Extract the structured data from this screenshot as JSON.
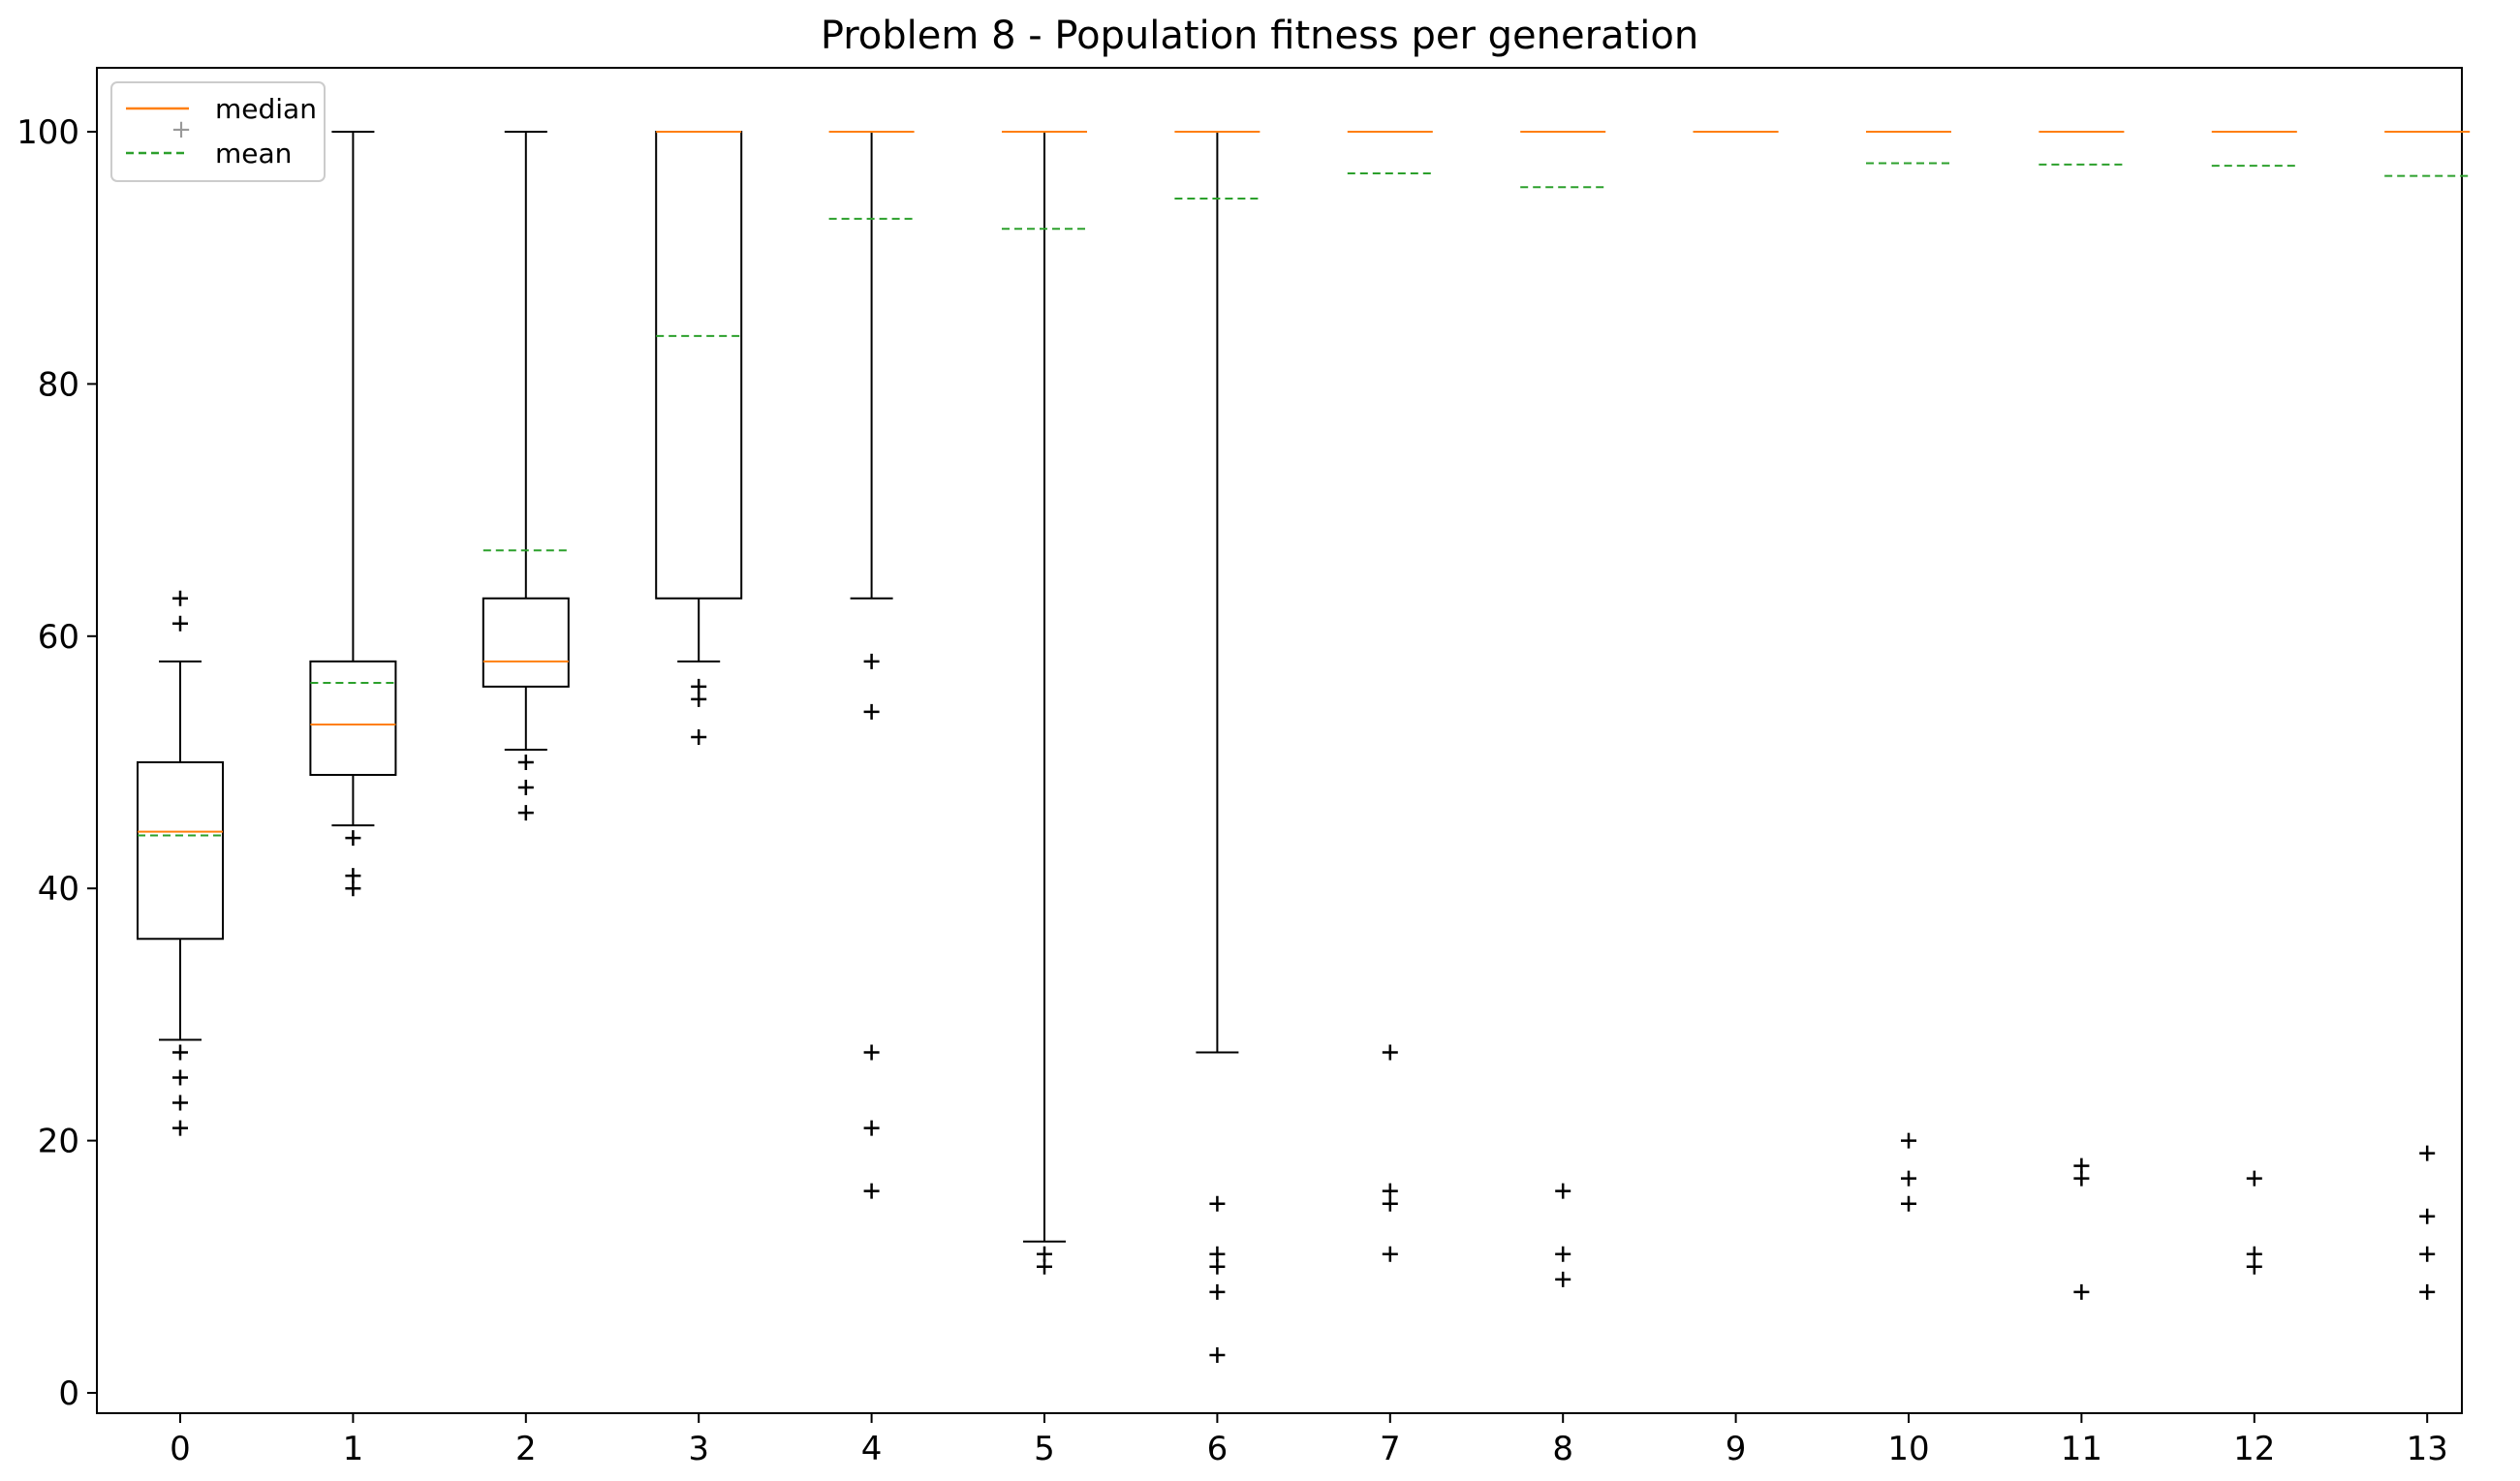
{
  "chart_data": {
    "type": "boxplot",
    "title": "Problem 8 - Population fitness per generation",
    "xlabel": "",
    "ylabel": "",
    "ylim": [
      -2,
      105
    ],
    "yticks": [
      0,
      20,
      40,
      60,
      80,
      100
    ],
    "categories": [
      "0",
      "1",
      "2",
      "3",
      "4",
      "5",
      "6",
      "7",
      "8",
      "9",
      "10",
      "11",
      "12",
      "13"
    ],
    "grid": false,
    "legend": {
      "position": "top-left",
      "entries": [
        {
          "label": "median",
          "color": "#ff7f0e",
          "style": "solid"
        },
        {
          "label": "mean",
          "color": "#2ca02c",
          "style": "dashed"
        }
      ],
      "flier_marker_color": "#999999"
    },
    "colors": {
      "box": "#000000",
      "median": "#ff7f0e",
      "mean": "#2ca02c",
      "flier": "#000000"
    },
    "boxes": [
      {
        "label": "0",
        "q1": 36,
        "median": 44.5,
        "q3": 50,
        "whislo": 28,
        "whishi": 58,
        "mean": 44.2,
        "fliers": [
          21,
          23,
          25,
          27,
          61,
          63
        ]
      },
      {
        "label": "1",
        "q1": 49,
        "median": 53,
        "q3": 58,
        "whislo": 45,
        "whishi": 100,
        "mean": 56.3,
        "fliers": [
          40,
          41,
          44
        ]
      },
      {
        "label": "2",
        "q1": 56,
        "median": 58,
        "q3": 63,
        "whislo": 51,
        "whishi": 100,
        "mean": 66.8,
        "fliers": [
          46,
          48,
          50
        ]
      },
      {
        "label": "3",
        "q1": 63,
        "median": 100,
        "q3": 100,
        "whislo": 58,
        "whishi": 100,
        "mean": 83.8,
        "fliers": [
          52,
          55,
          56
        ]
      },
      {
        "label": "4",
        "q1": 100,
        "median": 100,
        "q3": 100,
        "whislo": 63,
        "whishi": 100,
        "mean": 93.1,
        "fliers": [
          16,
          21,
          27,
          54,
          58
        ]
      },
      {
        "label": "5",
        "q1": 100,
        "median": 100,
        "q3": 100,
        "whislo": 12,
        "whishi": 100,
        "mean": 92.3,
        "fliers": [
          10,
          11
        ]
      },
      {
        "label": "6",
        "q1": 100,
        "median": 100,
        "q3": 100,
        "whislo": 27,
        "whishi": 100,
        "mean": 94.7,
        "fliers": [
          3,
          8,
          10,
          11,
          15
        ]
      },
      {
        "label": "7",
        "q1": 100,
        "median": 100,
        "q3": 100,
        "whislo": 100,
        "whishi": 100,
        "mean": 96.7,
        "fliers": [
          11,
          15,
          16,
          27
        ]
      },
      {
        "label": "8",
        "q1": 100,
        "median": 100,
        "q3": 100,
        "whislo": 100,
        "whishi": 100,
        "mean": 95.6,
        "fliers": [
          9,
          11,
          16
        ]
      },
      {
        "label": "9",
        "q1": 100,
        "median": 100,
        "q3": 100,
        "whislo": 100,
        "whishi": 100,
        "mean": 100,
        "fliers": []
      },
      {
        "label": "10",
        "q1": 100,
        "median": 100,
        "q3": 100,
        "whislo": 100,
        "whishi": 100,
        "mean": 97.5,
        "fliers": [
          15,
          17,
          20
        ]
      },
      {
        "label": "11",
        "q1": 100,
        "median": 100,
        "q3": 100,
        "whislo": 100,
        "whishi": 100,
        "mean": 97.4,
        "fliers": [
          8,
          17,
          18
        ]
      },
      {
        "label": "12",
        "q1": 100,
        "median": 100,
        "q3": 100,
        "whislo": 100,
        "whishi": 100,
        "mean": 97.3,
        "fliers": [
          10,
          11,
          17
        ]
      },
      {
        "label": "13",
        "q1": 100,
        "median": 100,
        "q3": 100,
        "whislo": 100,
        "whishi": 100,
        "mean": 96.5,
        "fliers": [
          8,
          11,
          14,
          19
        ]
      }
    ]
  }
}
